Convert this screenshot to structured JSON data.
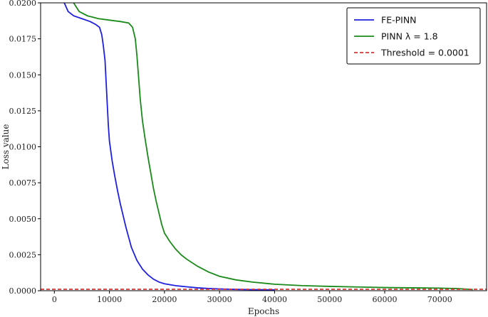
{
  "chart_data": {
    "type": "line",
    "xlabel": "Epochs",
    "ylabel": "Loss value",
    "xlim": [
      -2500,
      78500
    ],
    "ylim": [
      0,
      0.02
    ],
    "x_ticks": [
      0,
      10000,
      20000,
      30000,
      40000,
      50000,
      60000,
      70000
    ],
    "y_ticks": [
      0.0,
      0.0025,
      0.005,
      0.0075,
      0.01,
      0.0125,
      0.015,
      0.0175,
      0.02
    ],
    "x_tick_labels": [
      "0",
      "10000",
      "20000",
      "30000",
      "40000",
      "50000",
      "60000",
      "70000"
    ],
    "y_tick_labels": [
      "0.0000",
      "0.0025",
      "0.0050",
      "0.0075",
      "0.0100",
      "0.0125",
      "0.0150",
      "0.0175",
      "0.0200"
    ],
    "grid": false,
    "legend_position": "top-right",
    "series": [
      {
        "name": "FE-PINN",
        "color": "#1f1fe0",
        "style": "solid",
        "x": [
          1800,
          2500,
          3500,
          5000,
          6500,
          7500,
          8200,
          8600,
          8900,
          9200,
          9400,
          9600,
          9800,
          10000,
          10500,
          11000,
          11500,
          12000,
          12500,
          13000,
          13500,
          14000,
          15000,
          16000,
          17000,
          18000,
          19000,
          20000,
          22000,
          24000,
          26000,
          28000,
          30000,
          33000,
          36000,
          40000
        ],
        "y": [
          0.02,
          0.0194,
          0.0191,
          0.0189,
          0.0187,
          0.0185,
          0.0183,
          0.0178,
          0.017,
          0.016,
          0.0145,
          0.013,
          0.0115,
          0.0104,
          0.009,
          0.0079,
          0.0069,
          0.006,
          0.0052,
          0.0044,
          0.0037,
          0.003,
          0.0021,
          0.0015,
          0.0011,
          0.0008,
          0.0006,
          0.00048,
          0.00035,
          0.00027,
          0.0002,
          0.00015,
          0.00012,
          9e-05,
          7e-05,
          6e-05
        ]
      },
      {
        "name": "PINN λ = 1.8",
        "color": "#1a8a1a",
        "style": "solid",
        "x": [
          3500,
          4500,
          6000,
          8000,
          10000,
          12000,
          13500,
          14200,
          14700,
          15000,
          15300,
          15600,
          16000,
          16500,
          17000,
          17500,
          18000,
          18500,
          19000,
          19500,
          20000,
          21000,
          22000,
          23000,
          24000,
          26000,
          28000,
          30000,
          33000,
          36000,
          40000,
          45000,
          50000,
          55000,
          60000,
          65000,
          70000,
          73000,
          76000
        ],
        "y": [
          0.02,
          0.0194,
          0.0191,
          0.0189,
          0.0188,
          0.0187,
          0.0186,
          0.0183,
          0.0175,
          0.0163,
          0.0148,
          0.0133,
          0.0118,
          0.0105,
          0.0093,
          0.0082,
          0.0071,
          0.0062,
          0.0054,
          0.0046,
          0.004,
          0.0034,
          0.0029,
          0.0025,
          0.0022,
          0.0017,
          0.0013,
          0.001,
          0.00075,
          0.0006,
          0.00045,
          0.00035,
          0.0003,
          0.00026,
          0.00022,
          0.0002,
          0.00018,
          0.00015,
          8e-05
        ]
      },
      {
        "name": "Threshold = 0.0001",
        "color": "#e03030",
        "style": "dashed",
        "x": [
          -2500,
          78500
        ],
        "y": [
          0.0001,
          0.0001
        ]
      }
    ]
  }
}
